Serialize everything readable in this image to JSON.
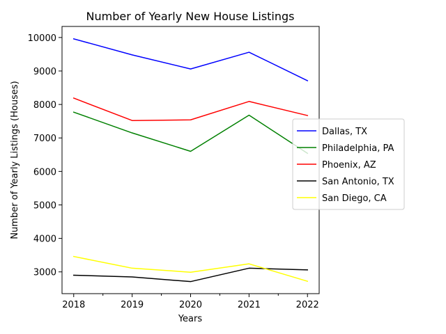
{
  "chart_data": {
    "type": "line",
    "title": "Number of Yearly New House Listings",
    "xlabel": "Years",
    "ylabel": "Number of Yearly Listings (Houses)",
    "x": [
      2018,
      2019,
      2020,
      2021,
      2022
    ],
    "x_tick_labels": [
      "2018",
      "2019",
      "2020",
      "2021",
      "2022"
    ],
    "minor_x_ticks": [
      2018.5,
      2019.5,
      2020.5,
      2021.5
    ],
    "xlim": [
      2017.8,
      2022.2
    ],
    "ylim": [
      2350,
      10330
    ],
    "y_ticks": [
      3000,
      4000,
      5000,
      6000,
      7000,
      8000,
      9000,
      10000
    ],
    "y_tick_labels": [
      "3000",
      "4000",
      "5000",
      "6000",
      "7000",
      "8000",
      "9000",
      "10000"
    ],
    "grid": false,
    "legend_position": "center-right",
    "series": [
      {
        "name": "Dallas, TX",
        "color": "#0000ff",
        "values": [
          9960,
          9480,
          9060,
          9560,
          8710
        ]
      },
      {
        "name": "Philadelphia, PA",
        "color": "#008000",
        "values": [
          7770,
          7150,
          6600,
          7680,
          6540
        ]
      },
      {
        "name": "Phoenix, AZ",
        "color": "#ff0000",
        "values": [
          8190,
          7520,
          7540,
          8090,
          7670
        ]
      },
      {
        "name": "San Antonio, TX",
        "color": "#000000",
        "values": [
          2900,
          2850,
          2710,
          3110,
          3060
        ]
      },
      {
        "name": "San Diego, CA",
        "color": "#ffff00",
        "values": [
          3460,
          3110,
          2990,
          3240,
          2720
        ]
      }
    ]
  }
}
